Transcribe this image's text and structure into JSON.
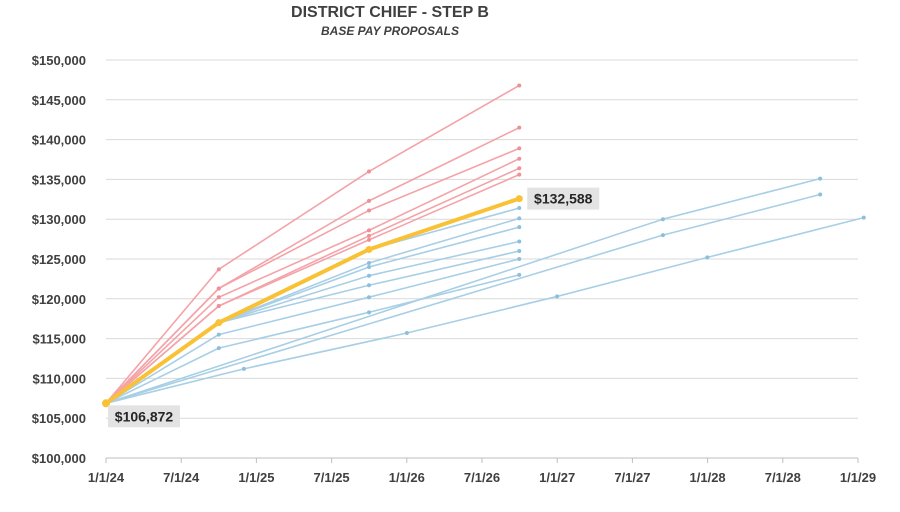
{
  "chart_data": {
    "type": "line",
    "title": "DISTRICT CHIEF - STEP B",
    "subtitle": "BASE PAY PROPOSALS",
    "xlabel": "",
    "ylabel": "",
    "x_ticks": [
      "1/1/24",
      "7/1/24",
      "1/1/25",
      "7/1/25",
      "1/1/26",
      "7/1/26",
      "1/1/27",
      "7/1/27",
      "1/1/28",
      "7/1/28",
      "1/1/29"
    ],
    "y_ticks": [
      "$100,000",
      "$105,000",
      "$110,000",
      "$115,000",
      "$120,000",
      "$125,000",
      "$130,000",
      "$135,000",
      "$140,000",
      "$145,000",
      "$150,000"
    ],
    "xlim": [
      "2024-01-01",
      "2029-01-01"
    ],
    "ylim": [
      100000,
      150000
    ],
    "grid": true,
    "colors": {
      "red": "#f4a3a8",
      "blue": "#a8cfe6",
      "highlight": "#f8c136",
      "grid": "#d9d9d9",
      "label_bg": "#e3e3e3"
    },
    "series": [
      {
        "group": "red",
        "points": [
          [
            "2024-01-01",
            106872
          ],
          [
            "2024-10-01",
            123700
          ],
          [
            "2025-10-01",
            136000
          ],
          [
            "2026-10-01",
            146800
          ]
        ]
      },
      {
        "group": "red",
        "points": [
          [
            "2024-01-01",
            106872
          ],
          [
            "2024-10-01",
            121300
          ],
          [
            "2025-10-01",
            132300
          ],
          [
            "2026-10-01",
            141500
          ]
        ]
      },
      {
        "group": "red",
        "points": [
          [
            "2024-01-01",
            106872
          ],
          [
            "2024-10-01",
            121300
          ],
          [
            "2025-10-01",
            131100
          ],
          [
            "2026-10-01",
            138900
          ]
        ]
      },
      {
        "group": "red",
        "points": [
          [
            "2024-01-01",
            106872
          ],
          [
            "2024-10-01",
            120200
          ],
          [
            "2025-10-01",
            128600
          ],
          [
            "2026-10-01",
            137600
          ]
        ]
      },
      {
        "group": "red",
        "points": [
          [
            "2024-01-01",
            106872
          ],
          [
            "2024-10-01",
            119100
          ],
          [
            "2025-10-01",
            127900
          ],
          [
            "2026-10-01",
            136400
          ]
        ]
      },
      {
        "group": "red",
        "points": [
          [
            "2024-01-01",
            106872
          ],
          [
            "2024-10-01",
            119100
          ],
          [
            "2025-10-01",
            127400
          ],
          [
            "2026-10-01",
            135600
          ]
        ]
      },
      {
        "group": "blue",
        "points": [
          [
            "2024-01-01",
            106872
          ],
          [
            "2024-10-01",
            117000
          ],
          [
            "2025-10-01",
            126200
          ],
          [
            "2026-10-01",
            131400
          ]
        ]
      },
      {
        "group": "blue",
        "points": [
          [
            "2024-01-01",
            106872
          ],
          [
            "2024-10-01",
            117000
          ],
          [
            "2025-10-01",
            124500
          ],
          [
            "2026-10-01",
            130100
          ]
        ]
      },
      {
        "group": "blue",
        "points": [
          [
            "2024-01-01",
            106872
          ],
          [
            "2024-10-01",
            117000
          ],
          [
            "2025-10-01",
            124000
          ],
          [
            "2026-10-01",
            129000
          ]
        ]
      },
      {
        "group": "blue",
        "points": [
          [
            "2024-01-01",
            106872
          ],
          [
            "2024-10-01",
            117000
          ],
          [
            "2025-10-01",
            122900
          ],
          [
            "2026-10-01",
            127200
          ]
        ]
      },
      {
        "group": "blue",
        "points": [
          [
            "2024-01-01",
            106872
          ],
          [
            "2024-10-01",
            117000
          ],
          [
            "2025-10-01",
            121700
          ],
          [
            "2026-10-01",
            126000
          ]
        ]
      },
      {
        "group": "blue",
        "points": [
          [
            "2024-01-01",
            106872
          ],
          [
            "2024-10-01",
            115500
          ],
          [
            "2025-10-01",
            120200
          ],
          [
            "2026-10-01",
            125000
          ]
        ]
      },
      {
        "group": "blue",
        "points": [
          [
            "2024-01-01",
            106872
          ],
          [
            "2024-10-01",
            113800
          ],
          [
            "2025-10-01",
            118300
          ],
          [
            "2026-10-01",
            123000
          ]
        ]
      },
      {
        "group": "blue",
        "points": [
          [
            "2024-01-01",
            106872
          ],
          [
            "2027-09-15",
            130000
          ],
          [
            "2028-10-01",
            135100
          ]
        ]
      },
      {
        "group": "blue",
        "points": [
          [
            "2024-01-01",
            106872
          ],
          [
            "2027-09-15",
            128000
          ],
          [
            "2028-10-01",
            133100
          ]
        ]
      },
      {
        "group": "blue",
        "points": [
          [
            "2024-01-01",
            106872
          ],
          [
            "2024-12-01",
            111200
          ],
          [
            "2026-01-01",
            115700
          ],
          [
            "2027-01-01",
            120300
          ],
          [
            "2028-01-01",
            125200
          ],
          [
            "2029-01-15",
            130200
          ]
        ]
      },
      {
        "group": "highlight",
        "points": [
          [
            "2024-01-01",
            106872
          ],
          [
            "2024-10-01",
            117000
          ],
          [
            "2025-10-01",
            126200
          ],
          [
            "2026-10-01",
            132588
          ]
        ]
      }
    ],
    "data_labels": [
      {
        "text": "$106,872",
        "date": "2024-01-01",
        "value": 106872
      },
      {
        "text": "$132,588",
        "date": "2026-10-01",
        "value": 132588
      }
    ]
  }
}
